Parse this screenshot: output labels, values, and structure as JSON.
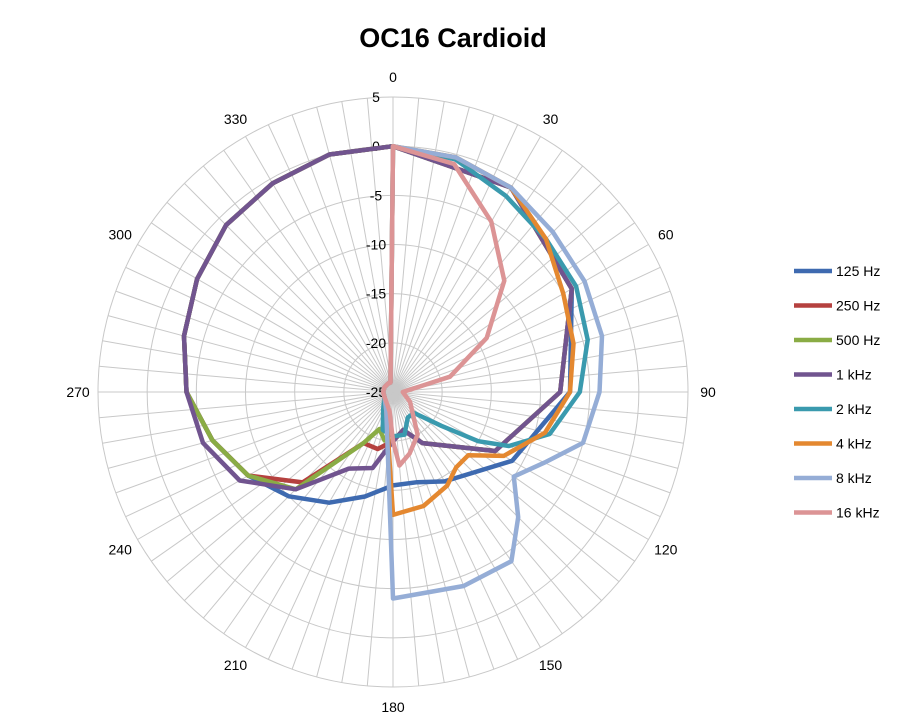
{
  "chart_data": {
    "type": "polar-line",
    "title": "OC16 Cardioid",
    "angle_labels": [
      "0",
      "30",
      "60",
      "90",
      "120",
      "150",
      "180",
      "210",
      "240",
      "270",
      "300",
      "330"
    ],
    "radial_ticks": [
      5,
      0,
      -5,
      -10,
      -15,
      -20,
      -25
    ],
    "rlim": [
      -25,
      5
    ],
    "angle_step": 5,
    "grid": true,
    "legend_position": "right",
    "series": [
      {
        "name": "125 Hz",
        "color": "#3E6AB0",
        "points": [
          [
            0,
            0
          ],
          [
            30,
            -1
          ],
          [
            60,
            -4
          ],
          [
            90,
            -7
          ],
          [
            120,
            -11
          ],
          [
            150,
            -14.5
          ],
          [
            165,
            -15.5
          ],
          [
            180,
            -15.5
          ],
          [
            195,
            -14
          ],
          [
            210,
            -12
          ],
          [
            225,
            -10
          ],
          [
            240,
            -8
          ],
          [
            255,
            -6
          ],
          [
            270,
            -4
          ],
          [
            285,
            -3
          ],
          [
            300,
            -2
          ],
          [
            315,
            -1
          ],
          [
            330,
            -0.5
          ],
          [
            345,
            0
          ],
          [
            360,
            0
          ]
        ]
      },
      {
        "name": "250 Hz",
        "color": "#B5413F",
        "points": [
          [
            0,
            0
          ],
          [
            30,
            -1
          ],
          [
            60,
            -4
          ],
          [
            90,
            -8
          ],
          [
            120,
            -13
          ],
          [
            150,
            -19
          ],
          [
            165,
            -21
          ],
          [
            180,
            -20
          ],
          [
            195,
            -19
          ],
          [
            210,
            -19
          ],
          [
            225,
            -12
          ],
          [
            240,
            -8
          ],
          [
            255,
            -6
          ],
          [
            270,
            -4
          ],
          [
            285,
            -3
          ],
          [
            300,
            -2
          ],
          [
            315,
            -1
          ],
          [
            330,
            -0.5
          ],
          [
            345,
            0
          ],
          [
            360,
            0
          ]
        ]
      },
      {
        "name": "500 Hz",
        "color": "#8AAC45",
        "points": [
          [
            0,
            0
          ],
          [
            30,
            -1
          ],
          [
            60,
            -4
          ],
          [
            90,
            -8
          ],
          [
            120,
            -13
          ],
          [
            150,
            -19
          ],
          [
            165,
            -21
          ],
          [
            180,
            -20
          ],
          [
            190,
            -20
          ],
          [
            200,
            -21
          ],
          [
            210,
            -19
          ],
          [
            225,
            -11
          ],
          [
            240,
            -8
          ],
          [
            255,
            -6
          ],
          [
            270,
            -4
          ],
          [
            285,
            -3
          ],
          [
            300,
            -2
          ],
          [
            315,
            -1
          ],
          [
            330,
            -0.5
          ],
          [
            345,
            0
          ],
          [
            360,
            0
          ]
        ]
      },
      {
        "name": "1 kHz",
        "color": "#71548F",
        "points": [
          [
            0,
            0
          ],
          [
            30,
            -1
          ],
          [
            60,
            -4
          ],
          [
            90,
            -8
          ],
          [
            120,
            -13
          ],
          [
            150,
            -19
          ],
          [
            165,
            -21
          ],
          [
            180,
            -20
          ],
          [
            195,
            -17
          ],
          [
            210,
            -16
          ],
          [
            225,
            -11
          ],
          [
            240,
            -7
          ],
          [
            255,
            -5
          ],
          [
            270,
            -4
          ],
          [
            285,
            -3
          ],
          [
            300,
            -2
          ],
          [
            315,
            -1
          ],
          [
            330,
            -0.5
          ],
          [
            345,
            0
          ],
          [
            360,
            0
          ]
        ]
      },
      {
        "name": "2 kHz",
        "color": "#3A9AAE",
        "points": [
          [
            0,
            0
          ],
          [
            15,
            -0.5
          ],
          [
            30,
            -2
          ],
          [
            45,
            -3
          ],
          [
            60,
            -3.5
          ],
          [
            75,
            -4.5
          ],
          [
            90,
            -6
          ],
          [
            105,
            -8.5
          ],
          [
            115,
            -12
          ],
          [
            120,
            -15
          ],
          [
            125,
            -19
          ],
          [
            135,
            -22
          ],
          [
            150,
            -22
          ],
          [
            165,
            -20.5
          ],
          [
            180,
            -20.5
          ],
          [
            195,
            -21
          ],
          [
            210,
            -23
          ],
          [
            240,
            -24
          ],
          [
            270,
            -24
          ],
          [
            300,
            -24
          ],
          [
            330,
            -24
          ],
          [
            345,
            -24
          ],
          [
            360,
            0
          ]
        ]
      },
      {
        "name": "4 kHz",
        "color": "#E48830",
        "points": [
          [
            0,
            0
          ],
          [
            15,
            -0.3
          ],
          [
            30,
            -1
          ],
          [
            45,
            -3
          ],
          [
            60,
            -5
          ],
          [
            75,
            -6
          ],
          [
            90,
            -7
          ],
          [
            105,
            -9
          ],
          [
            120,
            -12
          ],
          [
            130,
            -15
          ],
          [
            140,
            -15
          ],
          [
            150,
            -14
          ],
          [
            165,
            -13
          ],
          [
            180,
            -12.5
          ],
          [
            200,
            -23
          ],
          [
            240,
            -24
          ],
          [
            270,
            -24
          ],
          [
            300,
            -24
          ],
          [
            330,
            -24
          ],
          [
            345,
            -24
          ],
          [
            360,
            0
          ]
        ]
      },
      {
        "name": "8 kHz",
        "color": "#95ADD6",
        "points": [
          [
            0,
            0
          ],
          [
            15,
            -0.3
          ],
          [
            30,
            -1
          ],
          [
            45,
            -2
          ],
          [
            60,
            -2.5
          ],
          [
            75,
            -3
          ],
          [
            90,
            -4
          ],
          [
            105,
            -5
          ],
          [
            115,
            -8
          ],
          [
            125,
            -10
          ],
          [
            135,
            -7
          ],
          [
            145,
            -4
          ],
          [
            160,
            -4
          ],
          [
            180,
            -4
          ],
          [
            200,
            -23
          ],
          [
            240,
            -24
          ],
          [
            270,
            -24
          ],
          [
            300,
            -24
          ],
          [
            330,
            -24
          ],
          [
            345,
            -24
          ],
          [
            360,
            0
          ]
        ]
      },
      {
        "name": "16 kHz",
        "color": "#DC9495",
        "points": [
          [
            0,
            0
          ],
          [
            15,
            -1
          ],
          [
            30,
            -5
          ],
          [
            45,
            -9
          ],
          [
            60,
            -14
          ],
          [
            75,
            -19
          ],
          [
            90,
            -24
          ],
          [
            120,
            -23
          ],
          [
            150,
            -20
          ],
          [
            165,
            -18.5
          ],
          [
            175,
            -17.5
          ],
          [
            180,
            -20
          ],
          [
            190,
            -23
          ],
          [
            240,
            -24
          ],
          [
            270,
            -24
          ],
          [
            300,
            -24
          ],
          [
            330,
            -24
          ],
          [
            345,
            -24
          ],
          [
            360,
            0
          ]
        ]
      }
    ]
  }
}
